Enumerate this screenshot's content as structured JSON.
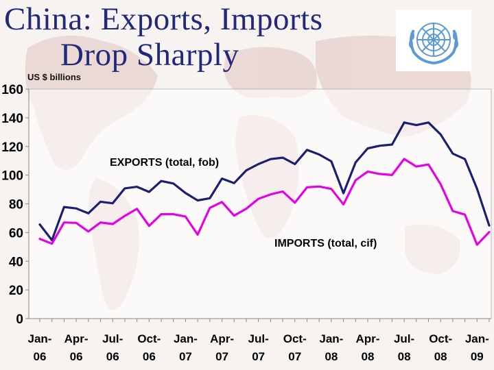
{
  "title": {
    "line1": "China:  Exports, Imports",
    "line2": "Drop Sharply"
  },
  "logo": {
    "icon": "un-emblem-icon",
    "color": "#5b9bd5"
  },
  "colors": {
    "exports": "#1a1f6e",
    "imports": "#e600e6",
    "title": "#23297a"
  },
  "chart_data": {
    "type": "line",
    "ylabel": "US $ billions",
    "ylim": [
      0,
      160
    ],
    "yticks": [
      0,
      20,
      40,
      60,
      80,
      100,
      120,
      140,
      160
    ],
    "grid": false,
    "xtick_labels": [
      [
        "Jan-",
        "06"
      ],
      [
        "Apr-",
        "06"
      ],
      [
        "Jul-",
        "06"
      ],
      [
        "Oct-",
        "06"
      ],
      [
        "Jan-",
        "07"
      ],
      [
        "Apr-",
        "07"
      ],
      [
        "Jul-",
        "07"
      ],
      [
        "Oct-",
        "07"
      ],
      [
        "Jan-",
        "08"
      ],
      [
        "Apr-",
        "08"
      ],
      [
        "Jul-",
        "08"
      ],
      [
        "Oct-",
        "08"
      ],
      [
        "Jan-",
        "09"
      ]
    ],
    "x": [
      "2006-01",
      "2006-02",
      "2006-03",
      "2006-04",
      "2006-05",
      "2006-06",
      "2006-07",
      "2006-08",
      "2006-09",
      "2006-10",
      "2006-11",
      "2006-12",
      "2007-01",
      "2007-02",
      "2007-03",
      "2007-04",
      "2007-05",
      "2007-06",
      "2007-07",
      "2007-08",
      "2007-09",
      "2007-10",
      "2007-11",
      "2007-12",
      "2008-01",
      "2008-02",
      "2008-03",
      "2008-04",
      "2008-05",
      "2008-06",
      "2008-07",
      "2008-08",
      "2008-09",
      "2008-10",
      "2008-11",
      "2008-12",
      "2009-01",
      "2009-02"
    ],
    "series": [
      {
        "name": "EXPORTS (total, fob)",
        "values": [
          65.6,
          54.7,
          77.8,
          76.8,
          73.4,
          81.5,
          80.4,
          90.8,
          91.9,
          88.3,
          95.9,
          94.2,
          87.5,
          82.4,
          83.9,
          97.6,
          94.4,
          103.3,
          107.7,
          111.2,
          112.2,
          107.7,
          117.6,
          114.4,
          109.6,
          87.4,
          108.9,
          118.7,
          120.5,
          121.3,
          136.7,
          134.9,
          136.7,
          128.4,
          115.0,
          111.2,
          90.5,
          64.9
        ]
      },
      {
        "name": "IMPORTS (total, cif)",
        "values": [
          55.6,
          52.2,
          67.0,
          66.7,
          60.7,
          67.0,
          65.9,
          71.6,
          76.5,
          64.6,
          72.8,
          72.8,
          71.1,
          58.5,
          77.2,
          81.3,
          71.8,
          76.6,
          83.5,
          86.6,
          88.6,
          80.8,
          91.5,
          92.1,
          90.4,
          79.6,
          96.5,
          102.5,
          100.8,
          100.1,
          111.3,
          106.0,
          107.4,
          93.7,
          75.0,
          72.5,
          51.5,
          60.3
        ]
      }
    ]
  }
}
